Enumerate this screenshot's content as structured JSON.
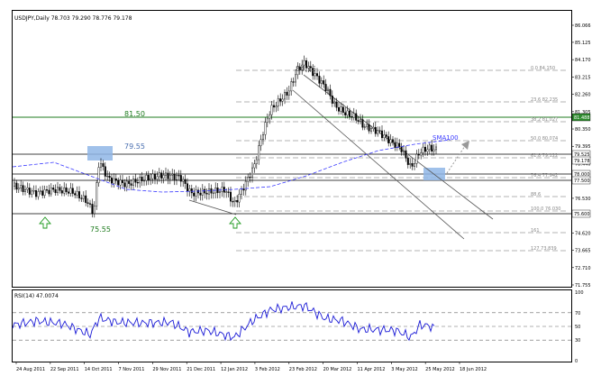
{
  "header": {
    "symbol_line": "USDJPY,Daily  78.703 79.290 78.776 79.178"
  },
  "price_axis": {
    "labels": [
      "86.066",
      "85.125",
      "84.170",
      "83.215",
      "82.260",
      "81.305",
      "80.350",
      "79.395",
      "78.440",
      "77.485",
      "76.530",
      "75.575",
      "74.620",
      "73.665",
      "72.710",
      "71.755"
    ]
  },
  "price_tags": [
    {
      "text": "79.525",
      "bg": "#ffffff",
      "color": "#000000"
    },
    {
      "text": "79.178",
      "bg": "#ffffff",
      "color": "#000000"
    },
    {
      "text": "78.000",
      "bg": "#ffffff",
      "color": "#000000"
    },
    {
      "text": "77.500",
      "bg": "#ffffff",
      "color": "#000000"
    },
    {
      "text": "75.600",
      "bg": "#ffffff",
      "color": "#000000"
    },
    {
      "text": "81.488",
      "bg": "#2e8b2e",
      "color": "#ffffff"
    }
  ],
  "fib_labels": [
    {
      "text": "0.0 84.150"
    },
    {
      "text": "23.6 82.235"
    },
    {
      "text": "38.2 81.027"
    },
    {
      "text": "50.0 80.074"
    },
    {
      "text": "61.8 79.122"
    },
    {
      "text": "76.4 77.942"
    },
    {
      "text": "88.6"
    },
    {
      "text": "100.0 76.030"
    },
    {
      "text": "161"
    },
    {
      "text": "127 73.839"
    }
  ],
  "annotations": {
    "peak": "84.15",
    "level_8150": "81.50",
    "level_7955": "79.55",
    "low_7555": "75.55",
    "sma": "SMA100"
  },
  "rsi": {
    "title": "RSI(14) 47.0074",
    "axis_labels": [
      "100",
      "70",
      "50",
      "30",
      "0"
    ]
  },
  "time_axis": {
    "labels": [
      "24 Aug 2011",
      "22 Sep 2011",
      "14 Oct 2011",
      "7 Nov 2011",
      "29 Nov 2011",
      "21 Dec 2011",
      "12 Jan 2012",
      "3 Feb 2012",
      "23 Feb 2012",
      "20 Mar 2012",
      "11 Apr 2012",
      "3 May 2012",
      "25 May 2012",
      "18 Jun 2012"
    ]
  },
  "colors": {
    "candle": "#000000",
    "sma": "#3a3aff",
    "level_green": "#1e7b1e",
    "fib": "#9a9a9a",
    "highlight": "#8fb6e6",
    "arrow_green": "#1f9a1f",
    "rsi_line": "#1a1ad6"
  },
  "chart_data": {
    "type": "line",
    "title": "USDJPY,Daily  78.703 79.290 78.776 79.178",
    "xlabel": "",
    "ylabel": "",
    "x": [
      "24 Aug 2011",
      "22 Sep 2011",
      "14 Oct 2011",
      "7 Nov 2011",
      "29 Nov 2011",
      "21 Dec 2011",
      "12 Jan 2012",
      "3 Feb 2012",
      "23 Feb 2012",
      "20 Mar 2012",
      "11 Apr 2012",
      "3 May 2012",
      "25 May 2012",
      "18 Jun 2012"
    ],
    "ylim": [
      71.755,
      86.066
    ],
    "grid": false,
    "series": [
      {
        "values": [
          76.9,
          76.7,
          77.1,
          77.6,
          77.6,
          77.9,
          76.8,
          76.2,
          78.4,
          83.8,
          81.5,
          80.0,
          78.9,
          79.2
        ]
      }
    ],
    "levels": [
      84.15,
      81.5,
      79.55,
      75.55
    ],
    "rsi": {
      "ylim": [
        0,
        100
      ],
      "last": 47.0074
    }
  }
}
